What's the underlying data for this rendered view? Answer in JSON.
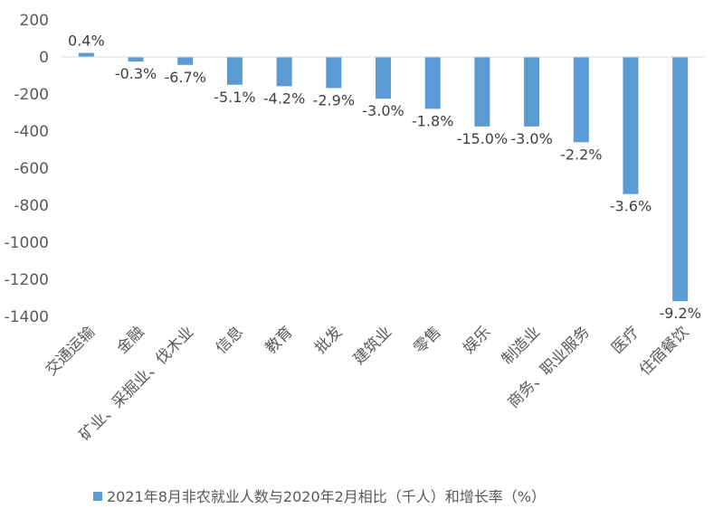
{
  "chart_data": {
    "type": "bar",
    "categories": [
      "交通运输",
      "金融",
      "矿业、采掘业、伐木业",
      "信息",
      "教育",
      "批发",
      "建筑业",
      "零售",
      "娱乐",
      "制造业",
      "商务、职业服务",
      "医疗",
      "住宿餐饮"
    ],
    "series": [
      {
        "name": "2021年8月非农就业人数与2020年2月相比（千人）和增长率（%）",
        "values": [
          22,
          -25,
          -43,
          -150,
          -158,
          -168,
          -225,
          -280,
          -375,
          -375,
          -460,
          -740,
          -1318
        ],
        "data_labels": [
          "0.4%",
          "-0.3%",
          "-6.7%",
          "-5.1%",
          "-4.2%",
          "-2.9%",
          "-3.0%",
          "-1.8%",
          "-15.0%",
          "-3.0%",
          "-2.2%",
          "-3.6%",
          "-9.2%"
        ]
      }
    ],
    "highlighted_labels": [
      8,
      12
    ],
    "ylim": [
      -1400,
      200
    ],
    "yticks": [
      200,
      0,
      -200,
      -400,
      -600,
      -800,
      -1000,
      -1200,
      -1400
    ],
    "grid": false,
    "legend_position": "bottom",
    "colors": {
      "bar": "#5B9BD5",
      "highlight_label": "#FF0000",
      "text": "#595959",
      "axis": "#D9D9D9"
    }
  }
}
